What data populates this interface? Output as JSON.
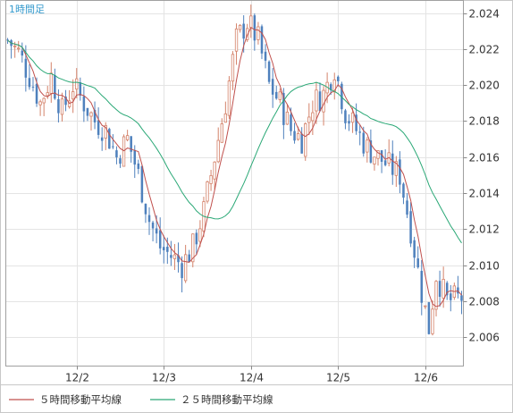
{
  "chart_data": {
    "type": "candlestick",
    "title": "1時間足",
    "timeframe_hours": 1,
    "ylim": [
      2.0044,
      2.0247
    ],
    "y_ticks": [
      {
        "value": 2.006,
        "label": "2.006"
      },
      {
        "value": 2.008,
        "label": "2.008"
      },
      {
        "value": 2.01,
        "label": "2.010"
      },
      {
        "value": 2.012,
        "label": "2.012"
      },
      {
        "value": 2.014,
        "label": "2.014"
      },
      {
        "value": 2.016,
        "label": "2.016"
      },
      {
        "value": 2.018,
        "label": "2.018"
      },
      {
        "value": 2.02,
        "label": "2.020"
      },
      {
        "value": 2.022,
        "label": "2.022"
      },
      {
        "value": 2.024,
        "label": "2.024"
      }
    ],
    "x_ticks": [
      {
        "index": 19,
        "label": "12/2"
      },
      {
        "index": 43,
        "label": "12/3"
      },
      {
        "index": 67,
        "label": "12/4"
      },
      {
        "index": 91,
        "label": "12/5"
      },
      {
        "index": 115,
        "label": "12/6"
      }
    ],
    "candle_count": 126,
    "close_path": [
      [
        0,
        2.0225
      ],
      [
        3,
        2.0218
      ],
      [
        6,
        2.0205
      ],
      [
        9,
        2.019
      ],
      [
        12,
        2.0205
      ],
      [
        15,
        2.0185
      ],
      [
        18,
        2.02
      ],
      [
        21,
        2.019
      ],
      [
        24,
        2.018
      ],
      [
        27,
        2.0175
      ],
      [
        30,
        2.016
      ],
      [
        33,
        2.017
      ],
      [
        36,
        2.015
      ],
      [
        39,
        2.0125
      ],
      [
        42,
        2.011
      ],
      [
        45,
        2.0105
      ],
      [
        48,
        2.01
      ],
      [
        51,
        2.011
      ],
      [
        54,
        2.013
      ],
      [
        57,
        2.016
      ],
      [
        60,
        2.019
      ],
      [
        63,
        2.0225
      ],
      [
        66,
        2.0235
      ],
      [
        69,
        2.0225
      ],
      [
        72,
        2.02
      ],
      [
        75,
        2.019
      ],
      [
        78,
        2.0175
      ],
      [
        81,
        2.017
      ],
      [
        84,
        2.019
      ],
      [
        87,
        2.0195
      ],
      [
        90,
        2.021
      ],
      [
        93,
        2.0185
      ],
      [
        96,
        2.0175
      ],
      [
        99,
        2.0165
      ],
      [
        102,
        2.016
      ],
      [
        105,
        2.0155
      ],
      [
        108,
        2.015
      ],
      [
        111,
        2.012
      ],
      [
        114,
        2.0085
      ],
      [
        116,
        2.0065
      ],
      [
        118,
        2.0095
      ],
      [
        121,
        2.008
      ],
      [
        125,
        2.0082
      ]
    ],
    "series": [
      {
        "name": "５時間移動平均線",
        "color": "#c0504d",
        "period": 5
      },
      {
        "name": "２５時間移動平均線",
        "color": "#2aa876",
        "period": 25
      }
    ],
    "candle_color": "#4f81bd",
    "up_wick_color": "#d4826a",
    "grid": true,
    "legend_position": "bottom-left"
  }
}
